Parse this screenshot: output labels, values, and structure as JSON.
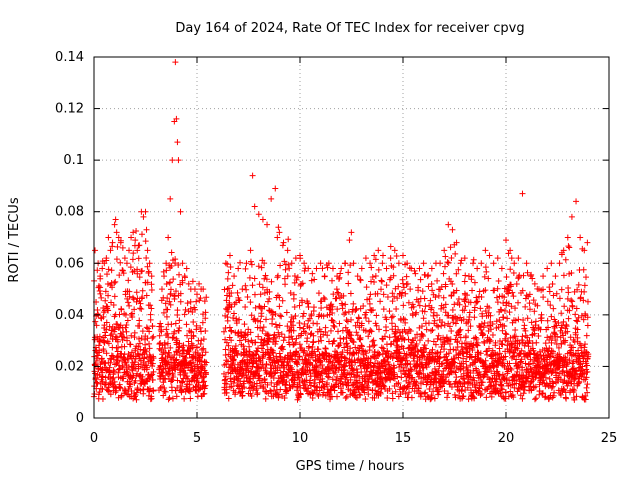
{
  "chart_data": {
    "type": "scatter",
    "title": "Day 164 of 2024, Rate Of TEC Index for receiver cpvg",
    "xlabel": "GPS time / hours",
    "ylabel": "ROTI / TECUs",
    "xlim": [
      0,
      25
    ],
    "ylim": [
      0,
      0.14
    ],
    "x_ticks": [
      "0",
      "5",
      "10",
      "15",
      "20",
      "25"
    ],
    "y_ticks": [
      "0",
      "0.02",
      "0.04",
      "0.06",
      "0.08",
      "0.1",
      "0.12",
      "0.14"
    ],
    "grid": true,
    "marker": "plus",
    "color": "#ff0000",
    "data_gaps_hours": [
      [
        2.9,
        3.15
      ],
      [
        5.45,
        6.3
      ],
      [
        24.0,
        25.0
      ]
    ],
    "series": [
      {
        "name": "ROTI",
        "x": [
          0.05,
          0.1,
          0.2,
          0.3,
          0.4,
          0.5,
          0.6,
          0.7,
          0.8,
          0.9,
          1.0,
          1.05,
          1.1,
          1.2,
          1.3,
          1.4,
          1.5,
          1.6,
          1.7,
          1.8,
          1.9,
          2.0,
          2.1,
          2.2,
          2.3,
          2.4,
          2.5,
          2.55,
          2.6,
          2.7,
          2.8,
          3.3,
          3.4,
          3.5,
          3.6,
          3.7,
          3.8,
          3.9,
          3.95,
          4.0,
          4.05,
          4.1,
          4.2,
          4.3,
          4.4,
          4.5,
          4.6,
          4.7,
          4.8,
          4.9,
          5.0,
          5.1,
          5.2,
          5.3,
          6.4,
          6.6,
          6.8,
          7.0,
          7.2,
          7.4,
          7.6,
          7.7,
          7.8,
          8.0,
          8.2,
          8.4,
          8.6,
          8.8,
          8.9,
          9.0,
          9.2,
          9.4,
          9.6,
          9.8,
          10.0,
          10.2,
          10.4,
          10.6,
          10.8,
          11.0,
          11.2,
          11.4,
          11.6,
          11.8,
          12.0,
          12.2,
          12.4,
          12.6,
          12.8,
          13.0,
          13.2,
          13.4,
          13.6,
          13.8,
          14.0,
          14.2,
          14.4,
          14.6,
          14.8,
          15.0,
          15.2,
          15.4,
          15.6,
          15.8,
          16.0,
          16.2,
          16.4,
          16.6,
          16.8,
          17.0,
          17.2,
          17.4,
          17.6,
          17.8,
          18.0,
          18.2,
          18.4,
          18.6,
          18.8,
          19.0,
          19.2,
          19.4,
          19.6,
          19.8,
          20.0,
          20.2,
          20.4,
          20.6,
          20.8,
          21.0,
          21.2,
          21.4,
          21.6,
          21.8,
          22.0,
          22.2,
          22.4,
          22.6,
          22.8,
          23.0,
          23.2,
          23.4,
          23.6,
          23.8,
          23.95
        ],
        "y": [
          0.065,
          0.045,
          0.06,
          0.055,
          0.058,
          0.06,
          0.062,
          0.07,
          0.065,
          0.068,
          0.075,
          0.077,
          0.072,
          0.07,
          0.068,
          0.066,
          0.062,
          0.06,
          0.065,
          0.07,
          0.072,
          0.069,
          0.065,
          0.067,
          0.08,
          0.078,
          0.08,
          0.073,
          0.065,
          0.06,
          0.055,
          0.05,
          0.055,
          0.06,
          0.07,
          0.085,
          0.1,
          0.115,
          0.138,
          0.116,
          0.107,
          0.1,
          0.08,
          0.06,
          0.055,
          0.058,
          0.052,
          0.05,
          0.053,
          0.05,
          0.048,
          0.052,
          0.05,
          0.05,
          0.06,
          0.063,
          0.055,
          0.058,
          0.05,
          0.06,
          0.065,
          0.094,
          0.082,
          0.079,
          0.077,
          0.075,
          0.085,
          0.089,
          0.07,
          0.072,
          0.068,
          0.065,
          0.06,
          0.062,
          0.063,
          0.06,
          0.058,
          0.056,
          0.058,
          0.06,
          0.055,
          0.06,
          0.058,
          0.055,
          0.058,
          0.06,
          0.069,
          0.06,
          0.055,
          0.058,
          0.062,
          0.06,
          0.063,
          0.065,
          0.06,
          0.058,
          0.062,
          0.065,
          0.06,
          0.063,
          0.06,
          0.058,
          0.056,
          0.058,
          0.06,
          0.055,
          0.058,
          0.06,
          0.06,
          0.065,
          0.075,
          0.073,
          0.068,
          0.06,
          0.062,
          0.055,
          0.06,
          0.058,
          0.06,
          0.065,
          0.063,
          0.06,
          0.062,
          0.058,
          0.069,
          0.065,
          0.06,
          0.062,
          0.087,
          0.06,
          0.055,
          0.052,
          0.05,
          0.055,
          0.058,
          0.06,
          0.055,
          0.06,
          0.065,
          0.07,
          0.078,
          0.084,
          0.07,
          0.065,
          0.068
        ],
        "baseline_min": 0.003,
        "baseline_typical": 0.015
      }
    ]
  }
}
